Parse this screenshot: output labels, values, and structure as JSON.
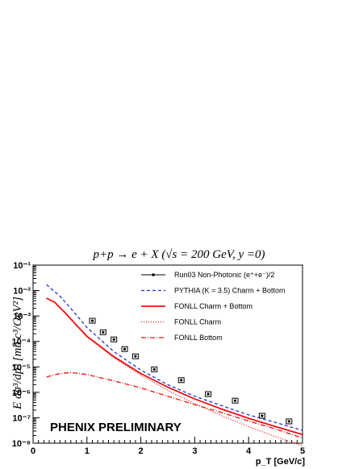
{
  "chart_data": {
    "type": "line",
    "title": "p+p → e + X (√s = 200 GeV, y =0)",
    "xlabel": "p_T [GeV/c]",
    "ylabel": "E dσ³/dp³ [mb c³/GeV²]",
    "xlim": [
      0,
      5
    ],
    "ylim_log10": [
      -8,
      -1
    ],
    "x_ticks": [
      "0",
      "1",
      "2",
      "3",
      "4",
      "5"
    ],
    "y_ticks": [
      "10⁻⁸",
      "10⁻⁷",
      "10⁻⁶",
      "10⁻⁵",
      "10⁻⁴",
      "10⁻³",
      "10⁻²",
      "10⁻¹"
    ],
    "annotation": "PHENIX PRELIMINARY",
    "legend_position": "top-right",
    "series": [
      {
        "name": "Run03 Non-Photonic (e⁺+e⁻)/2",
        "kind": "points",
        "color": "#000000",
        "x": [
          1.1,
          1.3,
          1.5,
          1.7,
          1.9,
          2.25,
          2.75,
          3.25,
          3.75,
          4.25,
          4.75
        ],
        "y": [
          0.00065,
          0.00023,
          0.00012,
          5e-05,
          2.6e-05,
          8e-06,
          3e-06,
          8.5e-07,
          4.7e-07,
          1.2e-07,
          7.2e-08
        ]
      },
      {
        "name": "PYTHIA (K = 3.5) Charm + Bottom",
        "kind": "line",
        "style": "dashed",
        "color": "#2233cc",
        "x": [
          0.25,
          0.5,
          0.75,
          1.0,
          1.5,
          2.0,
          2.5,
          3.0,
          3.5,
          4.0,
          4.5,
          5.0
        ],
        "y": [
          0.017,
          0.006,
          0.0015,
          0.00035,
          4e-05,
          7.5e-06,
          2e-06,
          7e-07,
          3e-07,
          1.3e-07,
          6.5e-08,
          3.2e-08
        ]
      },
      {
        "name": "FONLL Charm + Bottom",
        "kind": "line",
        "style": "solid",
        "color": "#ee1111",
        "x": [
          0.25,
          0.4,
          0.6,
          0.8,
          1.0,
          1.5,
          2.0,
          2.5,
          3.0,
          3.5,
          4.0,
          4.5,
          5.0
        ],
        "y": [
          0.005,
          0.0035,
          0.0013,
          0.00045,
          0.00016,
          2.5e-05,
          5.5e-06,
          1.6e-06,
          5.5e-07,
          2.2e-07,
          9.5e-08,
          4.5e-08,
          2.2e-08
        ]
      },
      {
        "name": "FONLL Charm",
        "kind": "line",
        "style": "dotted",
        "color": "#ee1111",
        "x": [
          0.25,
          0.4,
          0.6,
          0.8,
          1.0,
          1.5,
          2.0,
          2.5,
          3.0,
          3.5,
          4.0,
          4.5,
          5.0
        ],
        "y": [
          0.005,
          0.0035,
          0.0013,
          0.00045,
          0.00015,
          2.3e-05,
          4.7e-06,
          1.2e-06,
          3.6e-07,
          1.2e-07,
          4.5e-08,
          1.8e-08,
          8e-09
        ]
      },
      {
        "name": "FONLL Bottom",
        "kind": "line",
        "style": "dashdot",
        "color": "#ee1111",
        "x": [
          0.25,
          0.5,
          0.7,
          1.0,
          1.5,
          2.0,
          2.5,
          3.0,
          3.5,
          4.0,
          4.5,
          5.0
        ],
        "y": [
          4e-06,
          5.5e-06,
          6e-06,
          5e-06,
          2.8e-06,
          1.5e-06,
          7e-07,
          3.3e-07,
          1.6e-07,
          7.5e-08,
          3.6e-08,
          1.6e-08
        ]
      }
    ]
  }
}
